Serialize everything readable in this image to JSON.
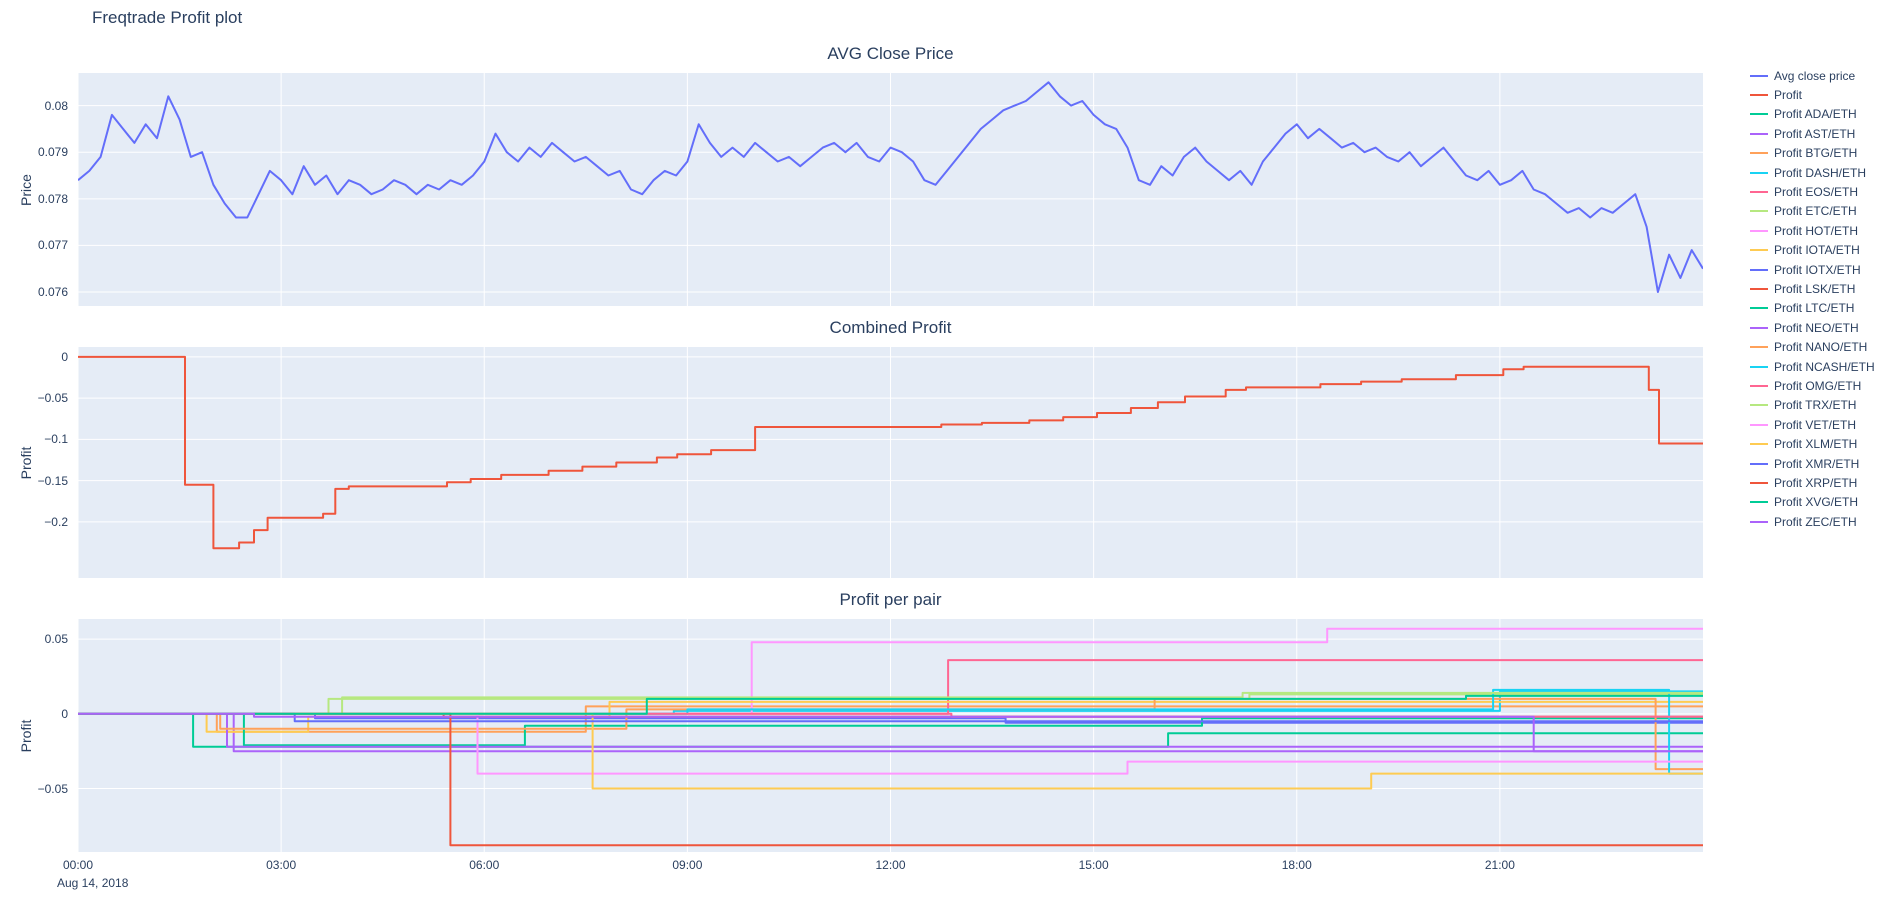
{
  "figure": {
    "title": "Freqtrade Profit plot",
    "background": "#ffffff",
    "plot_bgcolor": "#E5ECF6",
    "grid_color": "#ffffff",
    "text_color": "#2a3f5f"
  },
  "x_axis": {
    "xlim_hours": [
      0,
      24
    ],
    "ticks": [
      {
        "h": 0,
        "label": "00:00"
      },
      {
        "h": 3,
        "label": "03:00"
      },
      {
        "h": 6,
        "label": "06:00"
      },
      {
        "h": 9,
        "label": "09:00"
      },
      {
        "h": 12,
        "label": "12:00"
      },
      {
        "h": 15,
        "label": "15:00"
      },
      {
        "h": 18,
        "label": "18:00"
      },
      {
        "h": 21,
        "label": "21:00"
      }
    ],
    "date_label": "Aug 14, 2018"
  },
  "legend": {
    "items": [
      {
        "label": "Avg close price",
        "color": "#636EFA"
      },
      {
        "label": "Profit",
        "color": "#EF553B"
      },
      {
        "label": "Profit ADA/ETH",
        "color": "#00CC96"
      },
      {
        "label": "Profit AST/ETH",
        "color": "#AB63FA"
      },
      {
        "label": "Profit BTG/ETH",
        "color": "#FFA15A"
      },
      {
        "label": "Profit DASH/ETH",
        "color": "#19D3F3"
      },
      {
        "label": "Profit EOS/ETH",
        "color": "#FF6692"
      },
      {
        "label": "Profit ETC/ETH",
        "color": "#B6E880"
      },
      {
        "label": "Profit HOT/ETH",
        "color": "#FF97FF"
      },
      {
        "label": "Profit IOTA/ETH",
        "color": "#FECB52"
      },
      {
        "label": "Profit IOTX/ETH",
        "color": "#636EFA"
      },
      {
        "label": "Profit LSK/ETH",
        "color": "#EF553B"
      },
      {
        "label": "Profit LTC/ETH",
        "color": "#00CC96"
      },
      {
        "label": "Profit NEO/ETH",
        "color": "#AB63FA"
      },
      {
        "label": "Profit NANO/ETH",
        "color": "#FFA15A"
      },
      {
        "label": "Profit NCASH/ETH",
        "color": "#19D3F3"
      },
      {
        "label": "Profit OMG/ETH",
        "color": "#FF6692"
      },
      {
        "label": "Profit TRX/ETH",
        "color": "#B6E880"
      },
      {
        "label": "Profit VET/ETH",
        "color": "#FF97FF"
      },
      {
        "label": "Profit XLM/ETH",
        "color": "#FECB52"
      },
      {
        "label": "Profit XMR/ETH",
        "color": "#636EFA"
      },
      {
        "label": "Profit XRP/ETH",
        "color": "#EF553B"
      },
      {
        "label": "Profit XVG/ETH",
        "color": "#00CC96"
      },
      {
        "label": "Profit ZEC/ETH",
        "color": "#AB63FA"
      }
    ]
  },
  "chart_data": [
    {
      "type": "line",
      "title": "AVG Close Price",
      "ylabel": "Price",
      "ylim": [
        0.0757,
        0.0807
      ],
      "yticks": [
        {
          "v": 0.08,
          "label": "0.08"
        },
        {
          "v": 0.079,
          "label": "0.079"
        },
        {
          "v": 0.078,
          "label": "0.078"
        },
        {
          "v": 0.077,
          "label": "0.077"
        },
        {
          "v": 0.076,
          "label": "0.076"
        }
      ],
      "series": [
        {
          "name": "Avg close price",
          "color": "#636EFA",
          "mode": "linear",
          "x_step_minutes": 10,
          "values": [
            0.0784,
            0.0786,
            0.0789,
            0.0798,
            0.0795,
            0.0792,
            0.0796,
            0.0793,
            0.0802,
            0.0797,
            0.0789,
            0.079,
            0.0783,
            0.0779,
            0.0776,
            0.0776,
            0.0781,
            0.0786,
            0.0784,
            0.0781,
            0.0787,
            0.0783,
            0.0785,
            0.0781,
            0.0784,
            0.0783,
            0.0781,
            0.0782,
            0.0784,
            0.0783,
            0.0781,
            0.0783,
            0.0782,
            0.0784,
            0.0783,
            0.0785,
            0.0788,
            0.0794,
            0.079,
            0.0788,
            0.0791,
            0.0789,
            0.0792,
            0.079,
            0.0788,
            0.0789,
            0.0787,
            0.0785,
            0.0786,
            0.0782,
            0.0781,
            0.0784,
            0.0786,
            0.0785,
            0.0788,
            0.0796,
            0.0792,
            0.0789,
            0.0791,
            0.0789,
            0.0792,
            0.079,
            0.0788,
            0.0789,
            0.0787,
            0.0789,
            0.0791,
            0.0792,
            0.079,
            0.0792,
            0.0789,
            0.0788,
            0.0791,
            0.079,
            0.0788,
            0.0784,
            0.0783,
            0.0786,
            0.0789,
            0.0792,
            0.0795,
            0.0797,
            0.0799,
            0.08,
            0.0801,
            0.0803,
            0.0805,
            0.0802,
            0.08,
            0.0801,
            0.0798,
            0.0796,
            0.0795,
            0.0791,
            0.0784,
            0.0783,
            0.0787,
            0.0785,
            0.0789,
            0.0791,
            0.0788,
            0.0786,
            0.0784,
            0.0786,
            0.0783,
            0.0788,
            0.0791,
            0.0794,
            0.0796,
            0.0793,
            0.0795,
            0.0793,
            0.0791,
            0.0792,
            0.079,
            0.0791,
            0.0789,
            0.0788,
            0.079,
            0.0787,
            0.0789,
            0.0791,
            0.0788,
            0.0785,
            0.0784,
            0.0786,
            0.0783,
            0.0784,
            0.0786,
            0.0782,
            0.0781,
            0.0779,
            0.0777,
            0.0778,
            0.0776,
            0.0778,
            0.0777,
            0.0779,
            0.0781,
            0.0774,
            0.076,
            0.0768,
            0.0763,
            0.0769,
            0.0765
          ]
        }
      ]
    },
    {
      "type": "line",
      "title": "Combined Profit",
      "ylabel": "Profit",
      "ylim": [
        -0.268,
        0.012
      ],
      "yticks": [
        {
          "v": 0,
          "label": "0"
        },
        {
          "v": -0.05,
          "label": "−0.05"
        },
        {
          "v": -0.1,
          "label": "−0.1"
        },
        {
          "v": -0.15,
          "label": "−0.15"
        },
        {
          "v": -0.2,
          "label": "−0.2"
        }
      ],
      "series": [
        {
          "name": "Profit",
          "color": "#EF553B",
          "mode": "step",
          "points": [
            [
              0,
              0
            ],
            [
              1.58,
              -0.155
            ],
            [
              2.0,
              -0.232
            ],
            [
              2.38,
              -0.225
            ],
            [
              2.6,
              -0.21
            ],
            [
              2.8,
              -0.195
            ],
            [
              3.62,
              -0.19
            ],
            [
              3.8,
              -0.16
            ],
            [
              4.0,
              -0.157
            ],
            [
              5.45,
              -0.152
            ],
            [
              5.8,
              -0.148
            ],
            [
              6.25,
              -0.143
            ],
            [
              6.95,
              -0.138
            ],
            [
              7.45,
              -0.133
            ],
            [
              7.95,
              -0.128
            ],
            [
              8.55,
              -0.122
            ],
            [
              8.85,
              -0.118
            ],
            [
              9.35,
              -0.113
            ],
            [
              10.0,
              -0.085
            ],
            [
              12.75,
              -0.082
            ],
            [
              13.35,
              -0.08
            ],
            [
              14.05,
              -0.077
            ],
            [
              14.55,
              -0.073
            ],
            [
              15.05,
              -0.068
            ],
            [
              15.55,
              -0.062
            ],
            [
              15.95,
              -0.055
            ],
            [
              16.35,
              -0.048
            ],
            [
              16.95,
              -0.04
            ],
            [
              17.25,
              -0.037
            ],
            [
              18.35,
              -0.033
            ],
            [
              18.95,
              -0.03
            ],
            [
              19.55,
              -0.027
            ],
            [
              20.35,
              -0.022
            ],
            [
              21.05,
              -0.015
            ],
            [
              21.35,
              -0.012
            ],
            [
              23.2,
              -0.04
            ],
            [
              23.35,
              -0.105
            ]
          ]
        }
      ]
    },
    {
      "type": "line",
      "title": "Profit per pair",
      "ylabel": "Profit",
      "ylim": [
        -0.0925,
        0.0635
      ],
      "yticks": [
        {
          "v": 0.05,
          "label": "0.05"
        },
        {
          "v": 0,
          "label": "0"
        },
        {
          "v": -0.05,
          "label": "−0.05"
        }
      ],
      "series": [
        {
          "name": "Profit ADA/ETH",
          "color": "#00CC96",
          "mode": "step",
          "points": [
            [
              0,
              0
            ],
            [
              1.7,
              -0.022
            ],
            [
              16.1,
              -0.013
            ]
          ]
        },
        {
          "name": "Profit AST/ETH",
          "color": "#AB63FA",
          "mode": "step",
          "points": [
            [
              0,
              0
            ],
            [
              2.3,
              -0.025
            ]
          ]
        },
        {
          "name": "Profit BTG/ETH",
          "color": "#FFA15A",
          "mode": "step",
          "points": [
            [
              0,
              0
            ],
            [
              2.05,
              -0.012
            ],
            [
              7.5,
              0.005
            ]
          ]
        },
        {
          "name": "Profit DASH/ETH",
          "color": "#19D3F3",
          "mode": "step",
          "points": [
            [
              0,
              0
            ],
            [
              8.8,
              0.002
            ],
            [
              21.0,
              0.015
            ]
          ]
        },
        {
          "name": "Profit EOS/ETH",
          "color": "#FF6692",
          "mode": "step",
          "points": [
            [
              0,
              0
            ],
            [
              12.85,
              0.036
            ]
          ]
        },
        {
          "name": "Profit ETC/ETH",
          "color": "#B6E880",
          "mode": "step",
          "points": [
            [
              0,
              0
            ],
            [
              3.7,
              0.01
            ],
            [
              17.3,
              0.013
            ]
          ]
        },
        {
          "name": "Profit HOT/ETH",
          "color": "#FF97FF",
          "mode": "step",
          "points": [
            [
              0,
              0
            ],
            [
              9.95,
              0.048
            ],
            [
              18.45,
              0.057
            ]
          ]
        },
        {
          "name": "Profit IOTA/ETH",
          "color": "#FECB52",
          "mode": "step",
          "points": [
            [
              0,
              0
            ],
            [
              1.9,
              -0.012
            ],
            [
              3.4,
              -0.002
            ],
            [
              7.85,
              0.008
            ]
          ]
        },
        {
          "name": "Profit IOTX/ETH",
          "color": "#636EFA",
          "mode": "step",
          "points": [
            [
              0,
              0
            ],
            [
              3.5,
              -0.003
            ],
            [
              13.7,
              -0.006
            ]
          ]
        },
        {
          "name": "Profit LSK/ETH",
          "color": "#EF553B",
          "mode": "step",
          "points": [
            [
              0,
              0
            ],
            [
              5.4,
              -0.002
            ]
          ]
        },
        {
          "name": "Profit LTC/ETH",
          "color": "#00CC96",
          "mode": "step",
          "points": [
            [
              0,
              0
            ],
            [
              2.45,
              -0.021
            ],
            [
              6.6,
              -0.008
            ],
            [
              16.6,
              -0.003
            ]
          ]
        },
        {
          "name": "Profit NEO/ETH",
          "color": "#AB63FA",
          "mode": "step",
          "points": [
            [
              0,
              0
            ],
            [
              2.2,
              -0.022
            ]
          ]
        },
        {
          "name": "Profit NANO/ETH",
          "color": "#FFA15A",
          "mode": "step",
          "points": [
            [
              0,
              0
            ],
            [
              2.1,
              -0.01
            ],
            [
              8.1,
              0.003
            ],
            [
              15.9,
              0.01
            ],
            [
              23.3,
              -0.037
            ]
          ]
        },
        {
          "name": "Profit NCASH/ETH",
          "color": "#19D3F3",
          "mode": "step",
          "points": [
            [
              0,
              0
            ],
            [
              9.0,
              0.003
            ],
            [
              20.9,
              0.016
            ],
            [
              23.5,
              -0.04
            ]
          ]
        },
        {
          "name": "Profit OMG/ETH",
          "color": "#FF6692",
          "mode": "step",
          "points": [
            [
              0,
              0
            ],
            [
              12.9,
              -0.002
            ]
          ]
        },
        {
          "name": "Profit TRX/ETH",
          "color": "#B6E880",
          "mode": "step",
          "points": [
            [
              0,
              0
            ],
            [
              3.9,
              0.011
            ],
            [
              17.2,
              0.014
            ]
          ]
        },
        {
          "name": "Profit VET/ETH",
          "color": "#FF97FF",
          "mode": "step",
          "points": [
            [
              0,
              0
            ],
            [
              5.9,
              -0.04
            ],
            [
              15.5,
              -0.032
            ]
          ]
        },
        {
          "name": "Profit XLM/ETH",
          "color": "#FECB52",
          "mode": "step",
          "points": [
            [
              0,
              0
            ],
            [
              7.6,
              -0.05
            ],
            [
              19.1,
              -0.04
            ]
          ]
        },
        {
          "name": "Profit XMR/ETH",
          "color": "#636EFA",
          "mode": "step",
          "points": [
            [
              0,
              0
            ],
            [
              3.2,
              -0.005
            ]
          ]
        },
        {
          "name": "Profit XRP/ETH",
          "color": "#EF553B",
          "mode": "step",
          "points": [
            [
              0,
              0
            ],
            [
              5.5,
              -0.088
            ]
          ]
        },
        {
          "name": "Profit XVG/ETH",
          "color": "#00CC96",
          "mode": "step",
          "points": [
            [
              0,
              0
            ],
            [
              8.4,
              0.01
            ],
            [
              20.5,
              0.012
            ]
          ]
        },
        {
          "name": "Profit ZEC/ETH",
          "color": "#AB63FA",
          "mode": "step",
          "points": [
            [
              0,
              0
            ],
            [
              2.6,
              -0.002
            ],
            [
              21.5,
              -0.025
            ]
          ]
        }
      ]
    }
  ]
}
